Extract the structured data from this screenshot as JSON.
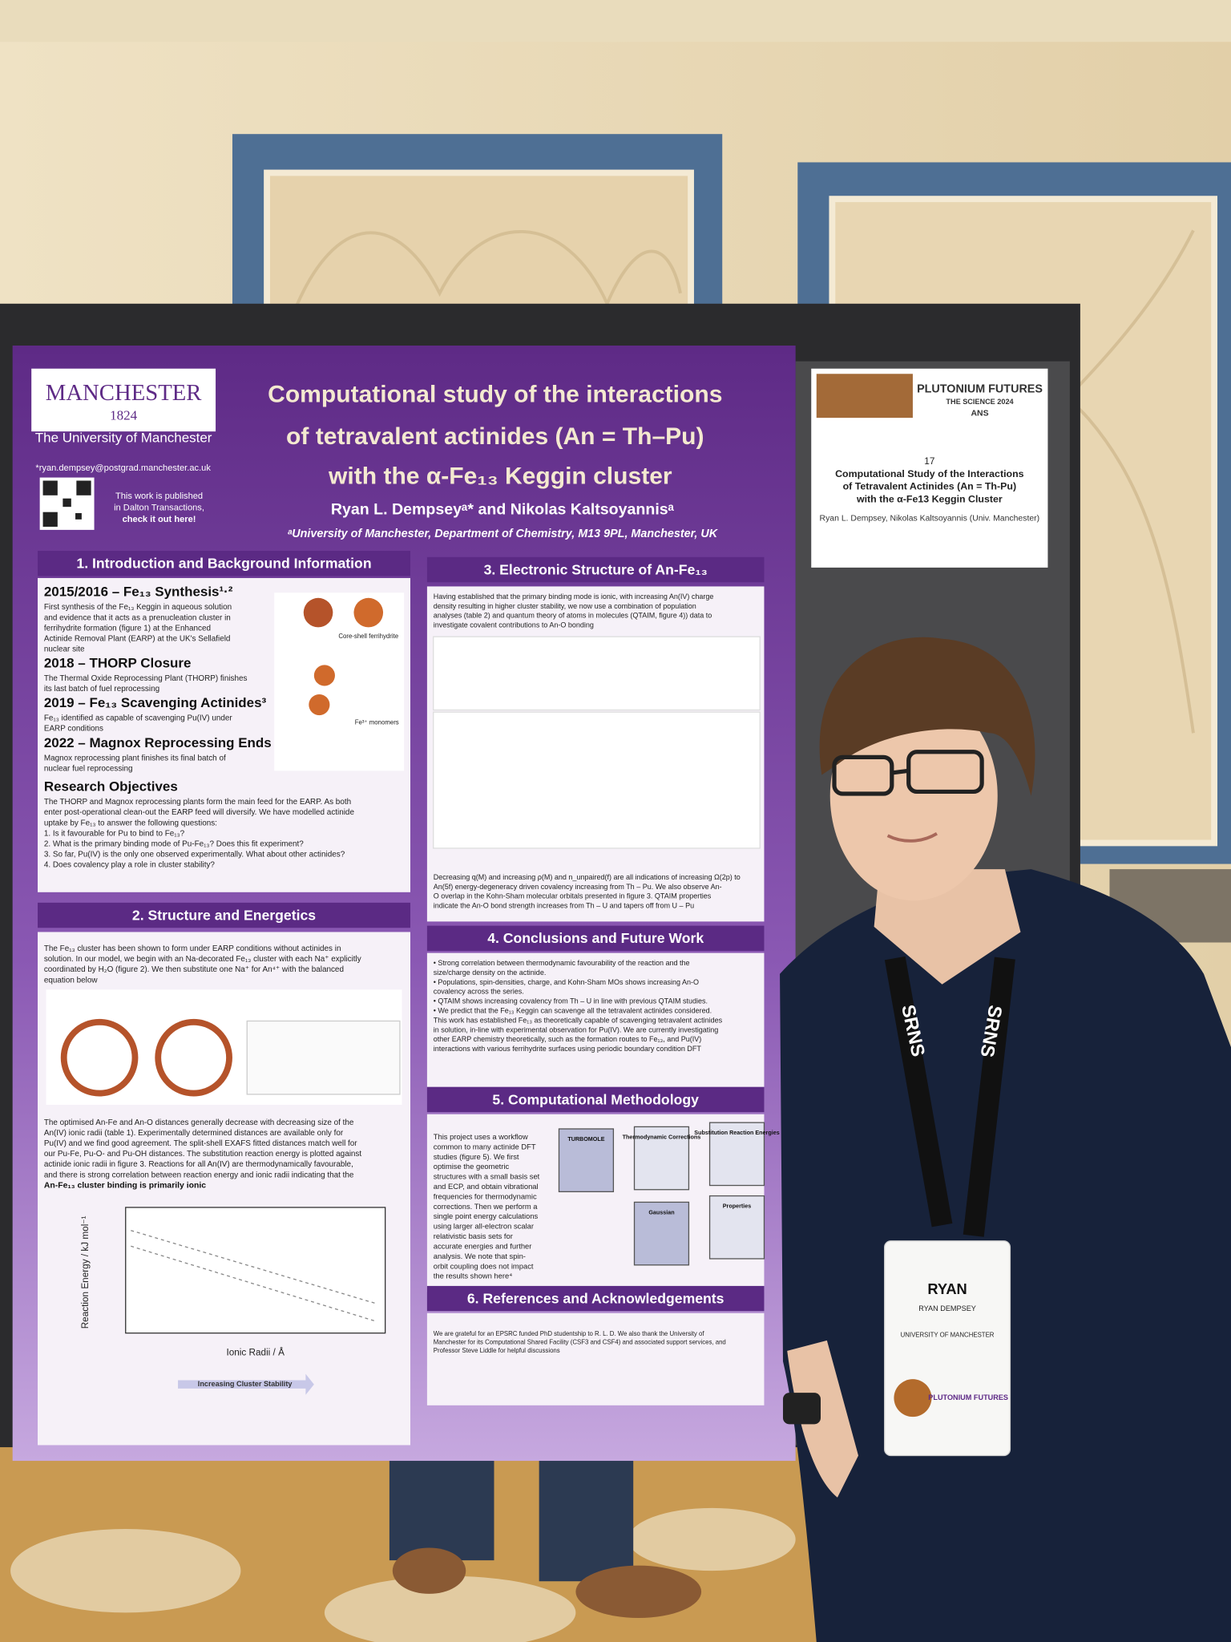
{
  "poster": {
    "logo": {
      "name": "MANCHESTER",
      "year": "1824",
      "university": "The University of Manchester"
    },
    "email": "*ryan.dempsey@postgrad.manchester.ac.uk",
    "publication": [
      "This work is published",
      "in Dalton Transactions,",
      "check it out here!"
    ],
    "title": [
      "Computational study of the interactions",
      "of tetravalent actinides (An = Th–Pu)",
      "with the α-Fe₁₃ Keggin cluster"
    ],
    "authors": "Ryan L. Dempseyᵃ* and Nikolas Kaltsoyannisᵃ",
    "affiliation": "ᵃUniversity of Manchester, Department of Chemistry, M13 9PL, Manchester, UK",
    "sections": [
      {
        "heading": "1. Introduction and Background Information",
        "parts": [
          {
            "subheading": "2015/2016 – Fe₁₃ Synthesis¹·²",
            "text": [
              "First synthesis of the Fe₁₃ Keggin in aqueous solution",
              "and evidence that it acts as a prenucleation cluster in",
              "ferrihydrite formation (figure 1) at the Enhanced",
              "Actinide Removal Plant (EARP) at the UK's Sellafield",
              "nuclear site"
            ]
          },
          {
            "subheading": "2018 – THORP Closure",
            "text": [
              "The Thermal Oxide Reprocessing Plant (THORP) finishes",
              "its last batch of fuel reprocessing"
            ]
          },
          {
            "subheading": "2019 – Fe₁₃ Scavenging Actinides³",
            "text": [
              "Fe₁₃ identified as capable of scavenging Pu(IV) under",
              "EARP conditions"
            ]
          },
          {
            "subheading": "2022 – Magnox Reprocessing Ends",
            "text": [
              "Magnox reprocessing plant finishes its final batch of",
              "nuclear fuel reprocessing"
            ]
          },
          {
            "subheading": "Research Objectives",
            "text": [
              "The THORP and Magnox reprocessing plants form the main feed for the EARP. As both",
              "enter post-operational clean-out the EARP feed will diversify. We have modelled actinide",
              "uptake by Fe₁₃ to answer the following questions:",
              "1.  Is it favourable for Pu to bind to Fe₁₃?",
              "2.  What is the primary binding mode of Pu-Fe₁₃? Does this fit experiment?",
              "3.  So far, Pu(IV) is the only one observed experimentally. What about other actinides?",
              "4.  Does covalency play a role in cluster stability?"
            ]
          }
        ]
      },
      {
        "heading": "2. Structure and Energetics",
        "parts": [
          {
            "text": [
              "The Fe₁₃ cluster has been shown to form under EARP conditions without actinides in",
              "solution. In our model, we begin with an Na-decorated Fe₁₃ cluster with each Na⁺ explicitly",
              "coordinated by H₂O (figure 2). We then substitute one Na⁺ for An⁴⁺ with the balanced",
              "equation below"
            ]
          },
          {
            "text": [
              "The optimised An-Fe and An-O distances generally decrease with decreasing size of the",
              "An(IV) ionic radii (table 1). Experimentally determined distances are available only for",
              "Pu(IV) and we find good agreement. The split-shell EXAFS fitted distances match well for",
              "our Pu-Fe, Pu-O- and Pu-OH distances. The substitution reaction energy is plotted against",
              "actinide ionic radii in figure 3. Reactions for all An(IV) are thermodynamically favourable,",
              "and there is strong correlation between reaction energy and ionic radii indicating that the"
            ],
            "emphasis": "An-Fe₁₃ cluster binding is primarily ionic"
          }
        ]
      },
      {
        "heading": "3. Electronic Structure of An-Fe₁₃",
        "parts": [
          {
            "text": [
              "Having established that the primary binding mode is ionic, with increasing An(IV) charge",
              "density resulting in higher cluster stability, we now use a combination of population",
              "analyses (table 2) and quantum theory of atoms in molecules (QTAIM, figure 4)) data to",
              "investigate covalent contributions to An-O bonding"
            ]
          },
          {
            "text": [
              "Decreasing q(M) and increasing ρ(M) and n_unpaired(f) are all indications of increasing Ω(2p) to",
              "An(5f) energy-degeneracy driven covalency increasing from Th – Pu. We also observe An-",
              "O overlap in the Kohn-Sham molecular orbitals presented in figure 3. QTAIM properties",
              "indicate the An-O bond strength increases from Th – U and tapers off from U – Pu"
            ]
          }
        ]
      },
      {
        "heading": "4. Conclusions and Future Work",
        "parts": [
          {
            "text": [
              "•  Strong correlation between thermodynamic favourability of the reaction and the",
              "   size/charge density on the actinide.",
              "•  Populations, spin-densities, charge, and Kohn-Sham MOs shows increasing An-O",
              "   covalency across the series.",
              "•  QTAIM shows increasing covalency from Th – U in line with previous QTAIM studies.",
              "•  We predict that the Fe₁₃ Keggin can scavenge all the tetravalent actinides considered.",
              "This work has established Fe₁₃ as theoretically capable of scavenging tetravalent actinides",
              "in solution, in-line with experimental observation for Pu(IV). We are currently investigating",
              "other EARP chemistry theoretically, such as the formation routes to Fe₁₃, and Pu(IV)",
              "interactions with various ferrihydrite surfaces using periodic boundary condition DFT"
            ]
          }
        ]
      },
      {
        "heading": "5. Computational Methodology",
        "parts": [
          {
            "text": [
              "This project uses a workflow",
              "common to many actinide DFT",
              "studies (figure 5). We first",
              "optimise the geometric",
              "structures with a small basis set",
              "and ECP, and obtain vibrational",
              "frequencies for thermodynamic",
              "corrections. Then we perform a",
              "single point energy calculations",
              "using larger all-electron scalar",
              "relativistic basis sets for",
              "accurate energies and further",
              "analysis. We note that spin-",
              "orbit coupling does not impact",
              "the results shown here⁴"
            ]
          }
        ]
      },
      {
        "heading": "6. References and Acknowledgements",
        "parts": [
          {
            "text": [
              "We are grateful for an EPSRC funded PhD studentship to R. L. D. We also thank the University of",
              "Manchester for its Computational Shared Facility (CSF3 and CSF4) and associated support services, and",
              "Professor Steve Liddle for helpful discussions"
            ]
          }
        ]
      }
    ],
    "workflow": [
      "TURBOMOLE",
      "Thermodynamic Corrections",
      "Substitution Reaction Energies",
      "Gaussian",
      "Properties"
    ],
    "figure_labels": {
      "energy_axis": "Reaction Energy / kJ mol⁻¹",
      "radii_axis": "Ionic Radii / Å",
      "arrow": "Increasing Cluster Stability",
      "core_shell": "Core-shell ferrihydrite",
      "monomers": "Fe³⁺ monomers"
    }
  },
  "sign": {
    "conference": "PLUTONIUM FUTURES",
    "edition": "THE SCIENCE 2024",
    "society": "ANS",
    "number": "17",
    "title": [
      "Computational Study of the Interactions",
      "of Tetravalent Actinides (An = Th-Pu)",
      "with the α-Fe13 Keggin Cluster"
    ],
    "authors": "Ryan L. Dempsey, Nikolas Kaltsoyannis (Univ. Manchester)"
  },
  "lanyard": "SRNS",
  "badge": {
    "first_name": "RYAN",
    "full_name": "RYAN DEMPSEY",
    "affiliation": "UNIVERSITY OF MANCHESTER",
    "event": "PLUTONIUM FUTURES"
  }
}
